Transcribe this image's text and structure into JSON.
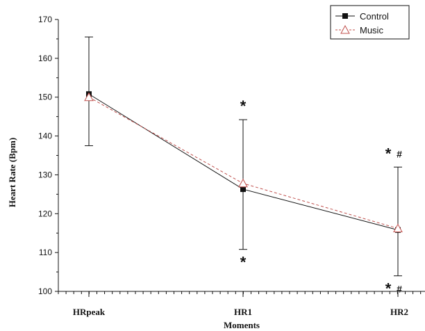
{
  "chart_data": {
    "type": "line",
    "title": "",
    "xlabel": "Moments",
    "ylabel": "Heart Rate (Bpm)",
    "categories": [
      "HRpeak",
      "HR1",
      "HR2"
    ],
    "ylim": [
      100,
      170
    ],
    "yticks": [
      100,
      110,
      120,
      130,
      140,
      150,
      160,
      170
    ],
    "grid": false,
    "legend_position": "top-right",
    "series": [
      {
        "name": "Control",
        "values": [
          150.8,
          126.3,
          115.8
        ],
        "error_upper": [
          165.5,
          144.2,
          132.0
        ],
        "error_lower": [
          137.5,
          110.8,
          104.0
        ],
        "color": "#111111",
        "line_style": "solid",
        "marker": "filled-square"
      },
      {
        "name": "Music",
        "values": [
          150.0,
          127.8,
          116.2
        ],
        "color": "#c0504d",
        "line_style": "dashed",
        "marker": "open-triangle"
      }
    ],
    "annotations": [
      {
        "category": "HR1",
        "position": "above",
        "text": "*"
      },
      {
        "category": "HR1",
        "position": "below",
        "text": "*"
      },
      {
        "category": "HR2",
        "position": "above",
        "text": "*",
        "sub": "#"
      },
      {
        "category": "HR2",
        "position": "below",
        "text": "*",
        "sub": "#"
      }
    ]
  }
}
